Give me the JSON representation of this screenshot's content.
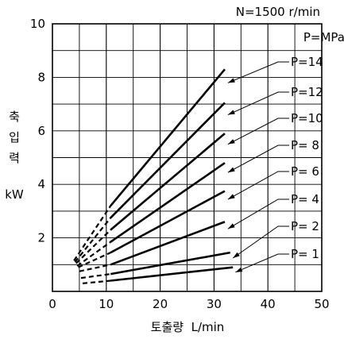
{
  "chart_data": {
    "type": "line",
    "annotation_top": "N=1500 r/min",
    "unit_label": "P=MPa",
    "ylabel_chars": [
      "축",
      "입",
      "력"
    ],
    "yunit": "kW",
    "xlabel": "토출량  L/min",
    "xlim": [
      0,
      50
    ],
    "ylim": [
      0,
      10
    ],
    "xticks": [
      0,
      10,
      20,
      30,
      40,
      50
    ],
    "yticks": [
      2,
      4,
      6,
      8,
      10
    ],
    "x_minor_step": 5,
    "y_minor_step": 1,
    "grid": true,
    "series": [
      {
        "name": "P=14",
        "dashed": [
          [
            4.0,
            1.15
          ],
          [
            10.8,
            3.2
          ]
        ],
        "solid": [
          [
            10.8,
            3.2
          ],
          [
            32.0,
            8.3
          ]
        ]
      },
      {
        "name": "P=12",
        "dashed": [
          [
            4.2,
            1.1
          ],
          [
            10.8,
            2.75
          ]
        ],
        "solid": [
          [
            10.8,
            2.75
          ],
          [
            32.0,
            7.05
          ]
        ]
      },
      {
        "name": "P=10",
        "dashed": [
          [
            4.4,
            1.05
          ],
          [
            10.8,
            2.3
          ]
        ],
        "solid": [
          [
            10.8,
            2.3
          ],
          [
            32.0,
            5.9
          ]
        ]
      },
      {
        "name": "P=  8",
        "dashed": [
          [
            4.6,
            0.95
          ],
          [
            10.8,
            1.85
          ]
        ],
        "solid": [
          [
            10.8,
            1.85
          ],
          [
            32.0,
            4.8
          ]
        ]
      },
      {
        "name": "P=  6",
        "dashed": [
          [
            4.8,
            0.9
          ],
          [
            10.8,
            1.45
          ]
        ],
        "solid": [
          [
            10.8,
            1.45
          ],
          [
            32.0,
            3.75
          ]
        ]
      },
      {
        "name": "P=  4",
        "dashed": [
          [
            5.0,
            0.75
          ],
          [
            10.8,
            1.0
          ]
        ],
        "solid": [
          [
            10.8,
            1.0
          ],
          [
            32.0,
            2.6
          ]
        ]
      },
      {
        "name": "P=  2",
        "dashed": [
          [
            5.3,
            0.5
          ],
          [
            10.8,
            0.65
          ]
        ],
        "solid": [
          [
            10.8,
            0.65
          ],
          [
            33.0,
            1.45
          ]
        ]
      },
      {
        "name": "P=  1",
        "dashed": [
          [
            5.6,
            0.3
          ],
          [
            10.8,
            0.4
          ]
        ],
        "solid": [
          [
            10.8,
            0.4
          ],
          [
            33.5,
            0.9
          ]
        ]
      }
    ]
  }
}
